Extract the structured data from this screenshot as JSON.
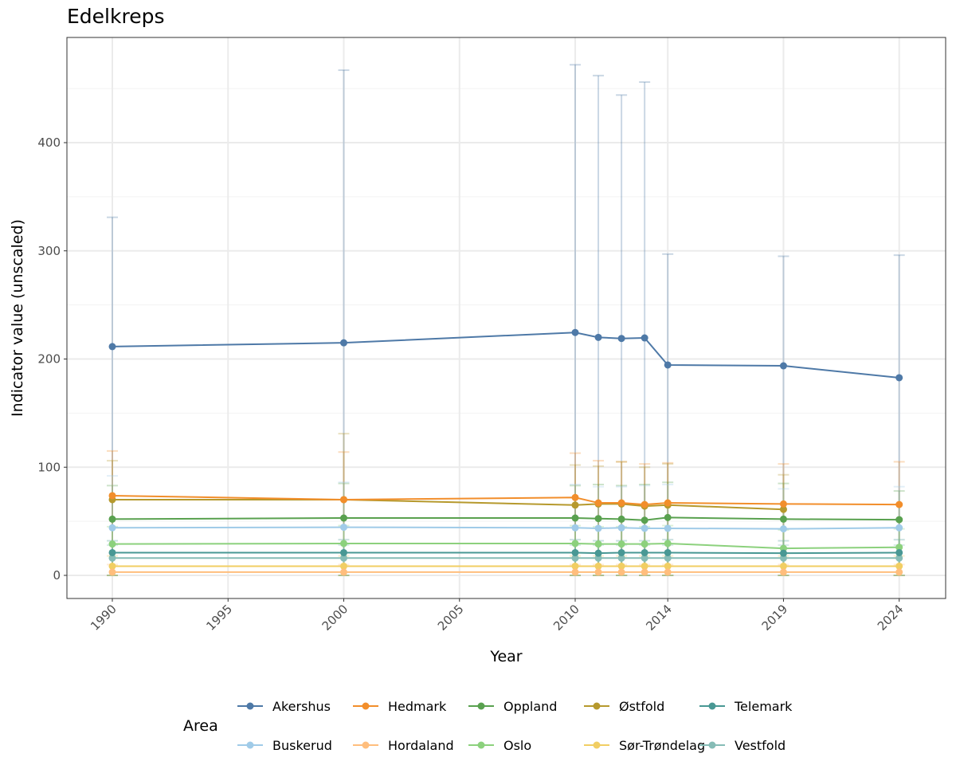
{
  "chart_data": {
    "type": "line",
    "title": "Edelkreps",
    "xlabel": "Year",
    "ylabel": "Indicator value (unscaled)",
    "xlim": [
      1987.8,
      2025.9
    ],
    "ylim": [
      -22,
      492
    ],
    "x_ticks": [
      1990,
      1995,
      2000,
      2005,
      2010,
      2014,
      2019,
      2024
    ],
    "y_ticks": [
      0,
      100,
      200,
      300,
      400
    ],
    "grid": true,
    "legend_title": "Area",
    "legend_position": "bottom",
    "x": [
      1990,
      2000,
      2010,
      2011,
      2012,
      2013,
      2014,
      2019,
      2024
    ],
    "series": [
      {
        "name": "Akershus",
        "color": "#4e79a7",
        "values": [
          211.5,
          215,
          224.5,
          220,
          219,
          219.5,
          194.5,
          193.7,
          182.7
        ],
        "upper": [
          331,
          467,
          472,
          462,
          444,
          456,
          297,
          295,
          296
        ],
        "lower": [
          0,
          0,
          0,
          0,
          0,
          0,
          0,
          0,
          0
        ]
      },
      {
        "name": "Hedmark",
        "color": "#f28e2b",
        "values": [
          73.7,
          70,
          72,
          67,
          67,
          65.5,
          67,
          66,
          65.5
        ],
        "upper": [
          115,
          114,
          113,
          106,
          105,
          103,
          104,
          103,
          105
        ],
        "lower": [
          0,
          0,
          0,
          0,
          0,
          0,
          0,
          0,
          0
        ]
      },
      {
        "name": "Oppland",
        "color": "#59a14f",
        "values": [
          52,
          53,
          53,
          52.5,
          52,
          51,
          53.5,
          52,
          51.5
        ],
        "upper": [
          83,
          85,
          83,
          84,
          83,
          84,
          86,
          85,
          78
        ],
        "lower": [
          0,
          0,
          0,
          0,
          0,
          0,
          0,
          0,
          0
        ]
      },
      {
        "name": "Østfold",
        "color": "#b6992d",
        "values": [
          70,
          70,
          65,
          66,
          66,
          64,
          65,
          61,
          null
        ],
        "upper": [
          106,
          131,
          102,
          101,
          105,
          100,
          103,
          93,
          null
        ],
        "lower": [
          0,
          0,
          0,
          0,
          0,
          0,
          0,
          0,
          null
        ]
      },
      {
        "name": "Telemark",
        "color": "#499894",
        "values": [
          21,
          21,
          21,
          20.5,
          21,
          21,
          21,
          20.5,
          21
        ],
        "upper": [
          32,
          33,
          33,
          32,
          32,
          32,
          33,
          32,
          33
        ],
        "lower": [
          0,
          0,
          0,
          0,
          0,
          0,
          0,
          0,
          0
        ]
      },
      {
        "name": "Buskerud",
        "color": "#a0cbe8",
        "values": [
          44,
          44.5,
          44,
          43.5,
          44,
          43.5,
          43.5,
          43,
          44
        ],
        "upper": [
          92,
          86,
          84,
          82,
          82,
          83,
          84,
          80,
          82
        ],
        "lower": [
          0,
          0,
          0,
          0,
          0,
          0,
          0,
          0,
          0
        ]
      },
      {
        "name": "Hordaland",
        "color": "#ffbe7d",
        "values": [
          3,
          3,
          3,
          3,
          3,
          3,
          3,
          3,
          3
        ],
        "upper": [
          10,
          10,
          10,
          10,
          10,
          10,
          10,
          10,
          10
        ],
        "lower": [
          0,
          0,
          0,
          0,
          0,
          0,
          0,
          0,
          0
        ]
      },
      {
        "name": "Oslo",
        "color": "#8cd17d",
        "values": [
          29,
          29.5,
          29.5,
          29,
          29,
          29,
          29.5,
          25,
          26
        ],
        "upper": [
          45,
          46,
          46,
          45,
          45,
          45,
          46,
          42,
          43
        ],
        "lower": [
          0,
          0,
          0,
          0,
          0,
          0,
          0,
          0,
          0
        ]
      },
      {
        "name": "Sør-Trøndelag",
        "color": "#f1ce63",
        "values": [
          8.5,
          8.5,
          8.5,
          8.5,
          8.5,
          8.5,
          8.5,
          8.5,
          8.5
        ],
        "upper": [
          18,
          18,
          18,
          18,
          18,
          18,
          18,
          18,
          18
        ],
        "lower": [
          0,
          0,
          0,
          0,
          0,
          0,
          0,
          0,
          0
        ]
      },
      {
        "name": "Vestfold",
        "color": "#86bcb6",
        "values": [
          16,
          16,
          16,
          16,
          16,
          16,
          16,
          16,
          16
        ],
        "upper": [
          28,
          28,
          28,
          28,
          28,
          28,
          28,
          28,
          28
        ],
        "lower": [
          0,
          0,
          0,
          0,
          0,
          0,
          0,
          0,
          0
        ]
      }
    ]
  }
}
